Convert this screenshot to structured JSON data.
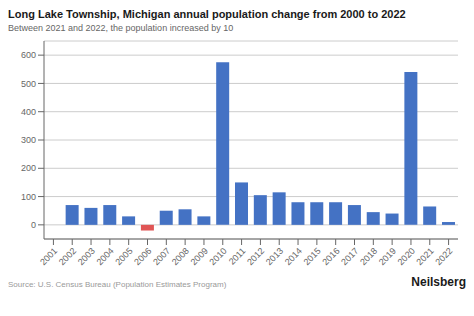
{
  "chart_data": {
    "type": "bar",
    "title": "Long Lake Township, Michigan annual population change from 2000 to 2022",
    "subtitle": "Between 2021 and 2022, the population increased by 10",
    "annotations": [
      "Source: U.S. Census Bureau (Population Estimates Program)",
      "Neilsberg"
    ],
    "categories": [
      "2001",
      "2002",
      "2003",
      "2004",
      "2005",
      "2006",
      "2007",
      "2008",
      "2009",
      "2010",
      "2011",
      "2012",
      "2013",
      "2014",
      "2015",
      "2016",
      "2017",
      "2018",
      "2019",
      "2020",
      "2021",
      "2022"
    ],
    "values": [
      0,
      70,
      60,
      70,
      30,
      -20,
      50,
      55,
      30,
      575,
      150,
      105,
      115,
      80,
      80,
      80,
      70,
      45,
      40,
      540,
      65,
      10
    ],
    "colors": [
      "#4472C4",
      "#4472C4",
      "#4472C4",
      "#4472C4",
      "#4472C4",
      "#E05555",
      "#4472C4",
      "#4472C4",
      "#4472C4",
      "#4472C4",
      "#4472C4",
      "#4472C4",
      "#4472C4",
      "#4472C4",
      "#4472C4",
      "#4472C4",
      "#4472C4",
      "#4472C4",
      "#4472C4",
      "#4472C4",
      "#4472C4",
      "#4472C4"
    ],
    "ylim": [
      -50,
      650
    ],
    "yticks": [
      0,
      100,
      200,
      300,
      400,
      500,
      600
    ],
    "grid": true
  }
}
